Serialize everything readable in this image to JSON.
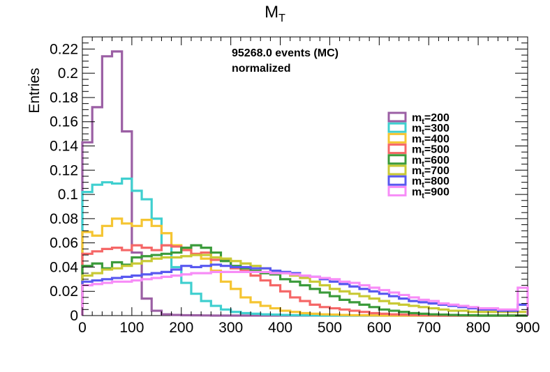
{
  "chart_data": {
    "type": "histogram",
    "title_main": "M",
    "title_sub": "T",
    "ylabel": "Entries",
    "xlabel": "",
    "xlim": [
      0,
      900
    ],
    "ylim": [
      0,
      0.23
    ],
    "bin_width": 20,
    "x_ticks": [
      "0",
      "100",
      "200",
      "300",
      "400",
      "500",
      "600",
      "700",
      "800",
      "900"
    ],
    "y_ticks": [
      "0",
      "0.02",
      "0.04",
      "0.06",
      "0.08",
      "0.1",
      "0.12",
      "0.14",
      "0.16",
      "0.18",
      "0.2",
      "0.22"
    ],
    "annotation_line1": "95268.0 events (MC)",
    "annotation_line2": "normalized",
    "legend_position": "right",
    "series": [
      {
        "name": "m_t=200",
        "legend_main": "m",
        "legend_sub": "t",
        "legend_value": "=200",
        "color": "#9b5fa4",
        "values": [
          0.143,
          0.172,
          0.214,
          0.218,
          0.152,
          0.052,
          0.014,
          0.004,
          0.001,
          0.0005,
          0.0003,
          0.0002,
          0.0001,
          0,
          0,
          0,
          0,
          0,
          0,
          0,
          0,
          0,
          0,
          0,
          0,
          0,
          0,
          0,
          0,
          0,
          0,
          0,
          0,
          0,
          0,
          0,
          0,
          0,
          0,
          0,
          0,
          0,
          0,
          0,
          0
        ]
      },
      {
        "name": "m_t=300",
        "legend_main": "m",
        "legend_sub": "t",
        "legend_value": "=300",
        "color": "#3fcfcf",
        "values": [
          0.102,
          0.108,
          0.11,
          0.109,
          0.113,
          0.103,
          0.096,
          0.08,
          0.058,
          0.04,
          0.027,
          0.018,
          0.012,
          0.008,
          0.005,
          0.003,
          0.002,
          0.0015,
          0.001,
          0.0008,
          0.0005,
          0.0003,
          0.0002,
          0.0001,
          0,
          0,
          0,
          0,
          0,
          0,
          0,
          0,
          0,
          0,
          0,
          0,
          0,
          0,
          0,
          0,
          0,
          0,
          0,
          0,
          0
        ]
      },
      {
        "name": "m_t=400",
        "legend_main": "m",
        "legend_sub": "t",
        "legend_value": "=400",
        "color": "#f5c532",
        "values": [
          0.069,
          0.066,
          0.074,
          0.08,
          0.076,
          0.074,
          0.079,
          0.074,
          0.068,
          0.058,
          0.055,
          0.05,
          0.047,
          0.037,
          0.028,
          0.022,
          0.015,
          0.011,
          0.008,
          0.006,
          0.004,
          0.003,
          0.002,
          0.0015,
          0.001,
          0.0008,
          0.0005,
          0.0003,
          0.0002,
          0.0001,
          0,
          0,
          0,
          0,
          0,
          0,
          0,
          0,
          0,
          0,
          0,
          0,
          0,
          0,
          0
        ]
      },
      {
        "name": "m_t=500",
        "legend_main": "m",
        "legend_sub": "t",
        "legend_value": "=500",
        "color": "#f56767",
        "values": [
          0.051,
          0.053,
          0.055,
          0.056,
          0.054,
          0.058,
          0.056,
          0.054,
          0.058,
          0.057,
          0.054,
          0.051,
          0.052,
          0.046,
          0.046,
          0.039,
          0.037,
          0.033,
          0.029,
          0.025,
          0.02,
          0.015,
          0.012,
          0.009,
          0.007,
          0.006,
          0.005,
          0.004,
          0.003,
          0.002,
          0.0015,
          0.001,
          0.0008,
          0.0005,
          0.0003,
          0.0002,
          0,
          0,
          0,
          0,
          0,
          0,
          0,
          0,
          0
        ]
      },
      {
        "name": "m_t=600",
        "legend_main": "m",
        "legend_sub": "t",
        "legend_value": "=600",
        "color": "#3b9b3b",
        "values": [
          0.041,
          0.043,
          0.039,
          0.044,
          0.042,
          0.048,
          0.049,
          0.05,
          0.051,
          0.052,
          0.056,
          0.058,
          0.056,
          0.052,
          0.045,
          0.041,
          0.039,
          0.037,
          0.035,
          0.034,
          0.03,
          0.028,
          0.025,
          0.022,
          0.019,
          0.016,
          0.013,
          0.011,
          0.009,
          0.007,
          0.005,
          0.004,
          0.003,
          0.002,
          0.0015,
          0.001,
          0.0008,
          0.0005,
          0.0003,
          0.0002,
          0,
          0,
          0,
          0,
          0
        ]
      },
      {
        "name": "m_t=700",
        "legend_main": "m",
        "legend_sub": "t",
        "legend_value": "=700",
        "color": "#c9c935",
        "values": [
          0.033,
          0.035,
          0.038,
          0.039,
          0.041,
          0.043,
          0.045,
          0.047,
          0.048,
          0.048,
          0.049,
          0.05,
          0.05,
          0.048,
          0.047,
          0.045,
          0.043,
          0.041,
          0.039,
          0.037,
          0.035,
          0.033,
          0.031,
          0.028,
          0.025,
          0.022,
          0.02,
          0.018,
          0.016,
          0.014,
          0.012,
          0.01,
          0.009,
          0.008,
          0.007,
          0.006,
          0.005,
          0.004,
          0.004,
          0.003,
          0.003,
          0.003,
          0.003,
          0.003,
          0.003
        ]
      },
      {
        "name": "m_t=800",
        "legend_main": "m",
        "legend_sub": "t",
        "legend_value": "=800",
        "color": "#5858f0",
        "values": [
          0.028,
          0.029,
          0.03,
          0.031,
          0.032,
          0.033,
          0.034,
          0.035,
          0.036,
          0.038,
          0.041,
          0.04,
          0.041,
          0.042,
          0.041,
          0.04,
          0.04,
          0.039,
          0.039,
          0.037,
          0.036,
          0.035,
          0.033,
          0.032,
          0.03,
          0.028,
          0.026,
          0.024,
          0.022,
          0.02,
          0.018,
          0.016,
          0.014,
          0.012,
          0.011,
          0.01,
          0.009,
          0.008,
          0.007,
          0.006,
          0.005,
          0.005,
          0.004,
          0.004,
          0.009
        ]
      },
      {
        "name": "m_t=900",
        "legend_main": "m",
        "legend_sub": "t",
        "legend_value": "=900",
        "color": "#f78cf7",
        "values": [
          0.025,
          0.026,
          0.027,
          0.028,
          0.028,
          0.029,
          0.03,
          0.031,
          0.032,
          0.033,
          0.034,
          0.035,
          0.035,
          0.036,
          0.036,
          0.036,
          0.036,
          0.036,
          0.036,
          0.035,
          0.035,
          0.034,
          0.033,
          0.032,
          0.031,
          0.03,
          0.028,
          0.027,
          0.025,
          0.023,
          0.021,
          0.019,
          0.017,
          0.015,
          0.013,
          0.012,
          0.01,
          0.009,
          0.008,
          0.007,
          0.006,
          0.006,
          0.005,
          0.005,
          0.023
        ]
      }
    ]
  }
}
